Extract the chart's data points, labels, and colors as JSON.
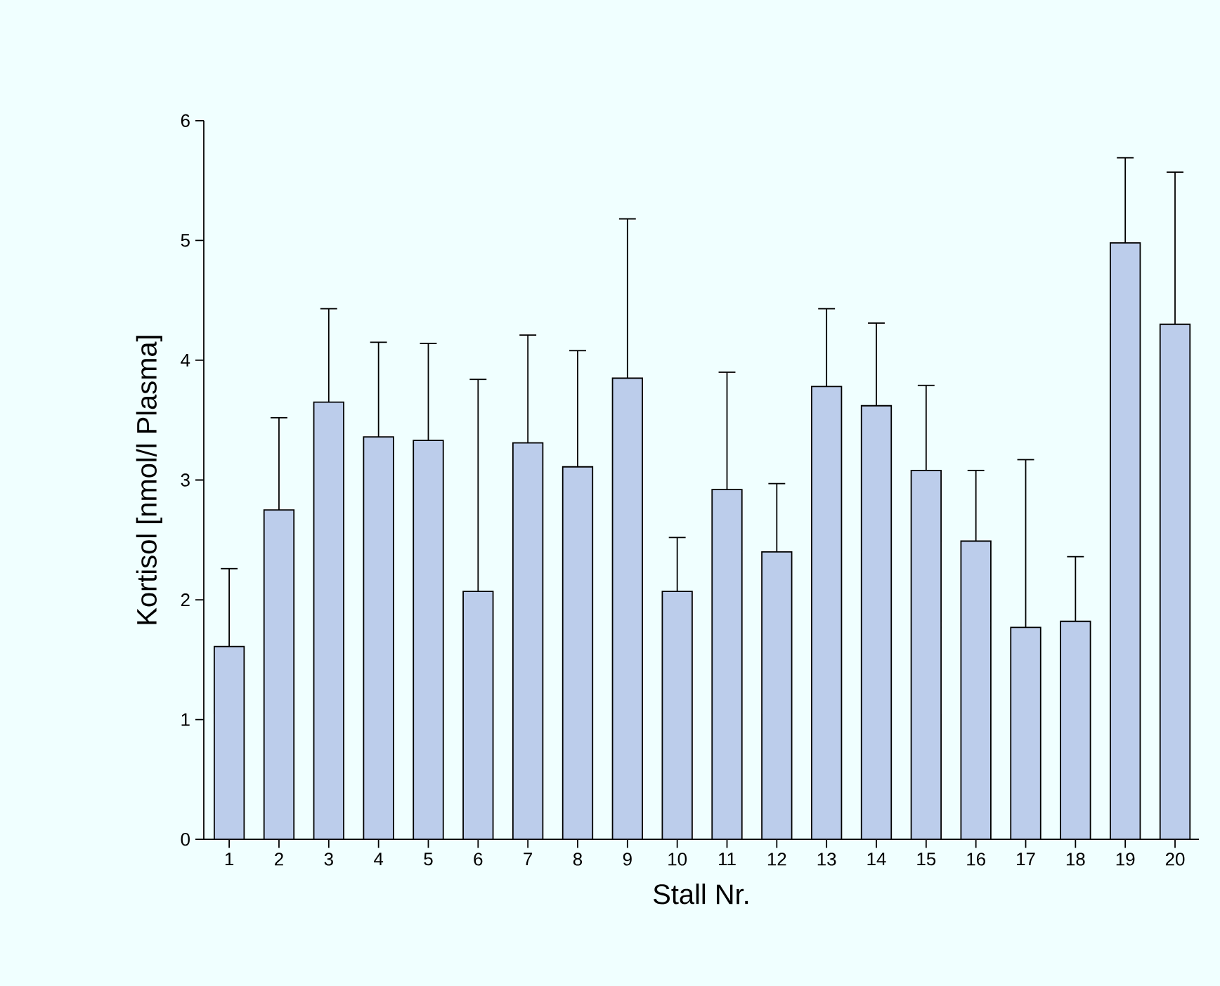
{
  "chart_data": {
    "type": "bar",
    "xlabel": "Stall Nr.",
    "ylabel": "Kortisol [nmol/l Plasma]",
    "categories": [
      "1",
      "2",
      "3",
      "4",
      "5",
      "6",
      "7",
      "8",
      "9",
      "10",
      "11",
      "12",
      "13",
      "14",
      "15",
      "16",
      "17",
      "18",
      "19",
      "20"
    ],
    "values": [
      1.61,
      2.75,
      3.65,
      3.36,
      3.33,
      2.07,
      3.31,
      3.11,
      3.85,
      2.07,
      2.92,
      2.4,
      3.78,
      3.62,
      3.08,
      2.49,
      1.77,
      1.82,
      4.98,
      4.3
    ],
    "errors": [
      [
        1.61,
        2.26
      ],
      [
        2.75,
        3.52
      ],
      [
        3.65,
        4.43
      ],
      [
        3.36,
        4.15
      ],
      [
        3.33,
        4.14
      ],
      [
        2.07,
        3.84
      ],
      [
        3.31,
        4.21
      ],
      [
        3.11,
        4.08
      ],
      [
        3.85,
        5.18
      ],
      [
        2.07,
        2.52
      ],
      [
        2.92,
        3.9
      ],
      [
        2.4,
        2.97
      ],
      [
        3.78,
        4.43
      ],
      [
        3.62,
        4.31
      ],
      [
        3.08,
        3.79
      ],
      [
        2.49,
        3.08
      ],
      [
        1.77,
        3.17
      ],
      [
        1.82,
        2.36
      ],
      [
        4.98,
        5.69
      ],
      [
        4.3,
        5.57
      ]
    ],
    "color": "#bccdeb",
    "ylim": [
      0,
      6
    ],
    "yticks": [
      0,
      1,
      2,
      3,
      4,
      5,
      6
    ]
  }
}
